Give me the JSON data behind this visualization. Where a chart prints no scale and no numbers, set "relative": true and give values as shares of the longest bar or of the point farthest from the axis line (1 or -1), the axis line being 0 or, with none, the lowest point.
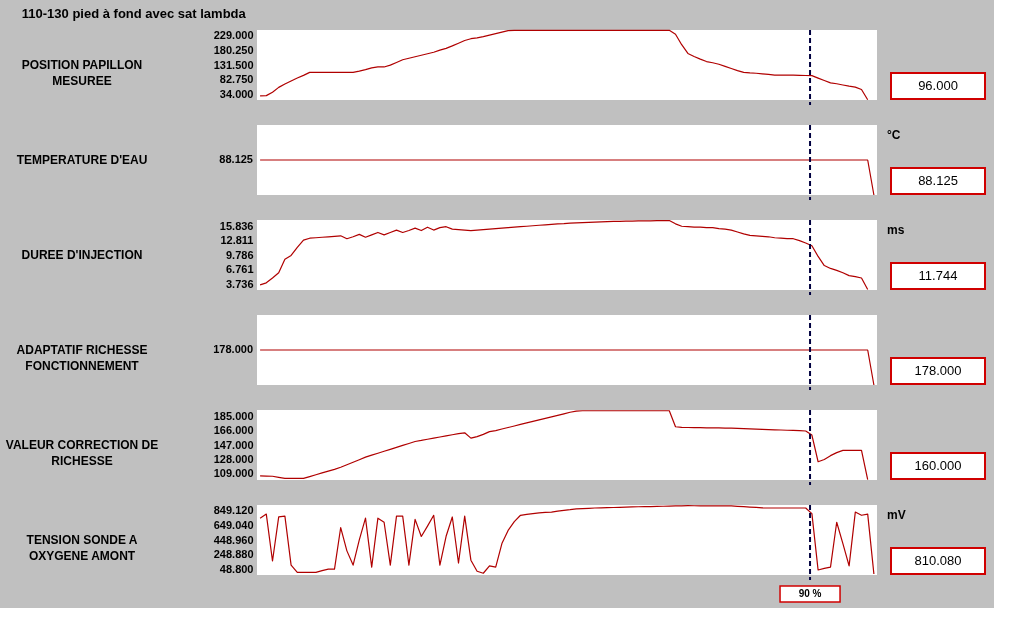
{
  "chart_data": [
    {
      "type": "line",
      "title": "110-130 pied à fond avec sat lambda",
      "ylabel": "POSITION PAPILLON MESUREE",
      "categories": [
        null,
        null,
        null,
        null,
        null,
        null,
        null,
        null,
        null,
        null,
        null,
        null,
        null,
        null,
        null,
        null,
        null,
        null,
        null,
        null,
        null,
        null,
        null,
        null,
        null,
        null,
        null,
        null,
        null,
        null,
        null,
        null,
        null,
        null,
        null,
        null,
        null,
        null,
        null,
        null,
        null,
        null,
        null,
        null,
        null,
        null,
        null,
        null,
        null,
        null,
        null,
        null,
        null,
        null,
        null,
        null,
        null,
        null,
        null,
        null,
        null,
        null,
        null,
        null,
        null,
        null,
        null,
        null,
        null,
        null,
        null,
        null,
        null,
        null,
        null,
        null,
        null,
        null,
        null,
        null,
        null,
        null,
        null,
        null,
        null,
        null,
        null,
        null,
        null,
        null,
        null,
        null,
        null,
        null,
        null,
        null,
        null,
        null,
        null,
        null
      ],
      "tick_labels": "y",
      "grid": false,
      "ylim": [
        15,
        248
      ],
      "yticks": [
        {
          "value": 34,
          "label": "34.000"
        },
        {
          "value": 82.75,
          "label": "82.750"
        },
        {
          "value": 131.5,
          "label": "131.500"
        },
        {
          "value": 180.25,
          "label": "180.250"
        },
        {
          "value": 229,
          "label": "229.000"
        }
      ],
      "series": [
        {
          "color": "#b00000",
          "values": [
            28.5,
            29.5,
            41,
            57,
            68,
            78,
            88,
            97,
            107,
            107,
            107,
            107,
            107,
            107,
            107,
            107,
            111,
            116,
            122,
            125,
            125,
            131,
            140,
            149,
            154,
            159,
            164,
            169,
            174,
            181,
            187,
            195,
            204,
            213,
            219,
            222,
            226,
            231,
            236,
            241,
            246,
            247,
            247,
            247,
            247,
            247,
            247,
            247,
            247,
            247,
            247,
            247,
            247,
            247,
            247,
            247,
            247,
            247,
            247,
            247,
            247,
            247,
            247,
            247,
            247,
            247,
            247,
            234,
            199,
            170,
            160,
            151,
            143,
            139,
            134,
            127,
            120,
            113,
            107,
            105,
            104,
            102,
            100,
            98,
            97.6,
            97.6,
            97.6,
            97,
            96.5,
            96,
            88,
            80,
            72,
            69,
            65,
            61,
            58,
            50,
            16,
            null
          ]
        }
      ],
      "annotations": [
        "96.000"
      ]
    },
    {
      "type": "line",
      "ylabel": "TEMPERATURE D'EAU",
      "y2label": "°C",
      "relative": true,
      "categories": [
        null,
        null,
        null,
        null,
        null,
        null,
        null,
        null,
        null,
        null,
        null,
        null,
        null,
        null,
        null,
        null,
        null,
        null,
        null,
        null,
        null,
        null,
        null,
        null,
        null,
        null,
        null,
        null,
        null,
        null,
        null,
        null,
        null,
        null,
        null,
        null,
        null,
        null,
        null,
        null,
        null,
        null,
        null,
        null,
        null,
        null,
        null,
        null,
        null,
        null,
        null,
        null,
        null,
        null,
        null,
        null,
        null,
        null,
        null,
        null,
        null,
        null,
        null,
        null,
        null,
        null,
        null,
        null,
        null,
        null,
        null,
        null,
        null,
        null,
        null,
        null,
        null,
        null,
        null,
        null,
        null,
        null,
        null,
        null,
        null,
        null,
        null,
        null,
        null,
        null,
        null,
        null,
        null,
        null,
        null,
        null,
        null,
        null,
        null,
        null
      ],
      "tick_labels": false,
      "grid": false,
      "series": [
        {
          "color": "#b00000",
          "values": [
            1,
            1,
            1,
            1,
            1,
            1,
            1,
            1,
            1,
            1,
            1,
            1,
            1,
            1,
            1,
            1,
            1,
            1,
            1,
            1,
            1,
            1,
            1,
            1,
            1,
            1,
            1,
            1,
            1,
            1,
            1,
            1,
            1,
            1,
            1,
            1,
            1,
            1,
            1,
            1,
            1,
            1,
            1,
            1,
            1,
            1,
            1,
            1,
            1,
            1,
            1,
            1,
            1,
            1,
            1,
            1,
            1,
            1,
            1,
            1,
            1,
            1,
            1,
            1,
            1,
            1,
            1,
            1,
            1,
            1,
            1,
            1,
            1,
            1,
            1,
            1,
            1,
            1,
            1,
            1,
            1,
            1,
            1,
            1,
            1,
            1,
            1,
            1,
            1,
            1,
            1,
            1,
            1,
            1,
            1,
            1,
            1,
            1,
            1,
            0
          ]
        }
      ],
      "annotations": [
        "88.125",
        "88.125"
      ]
    },
    {
      "type": "line",
      "ylabel": "DUREE D'INJECTION",
      "y2label": "ms",
      "categories": [
        null,
        null,
        null,
        null,
        null,
        null,
        null,
        null,
        null,
        null,
        null,
        null,
        null,
        null,
        null,
        null,
        null,
        null,
        null,
        null,
        null,
        null,
        null,
        null,
        null,
        null,
        null,
        null,
        null,
        null,
        null,
        null,
        null,
        null,
        null,
        null,
        null,
        null,
        null,
        null,
        null,
        null,
        null,
        null,
        null,
        null,
        null,
        null,
        null,
        null,
        null,
        null,
        null,
        null,
        null,
        null,
        null,
        null,
        null,
        null,
        null,
        null,
        null,
        null,
        null,
        null,
        null,
        null,
        null,
        null,
        null,
        null,
        null,
        null,
        null,
        null,
        null,
        null,
        null,
        null,
        null,
        null,
        null,
        null,
        null,
        null,
        null,
        null,
        null,
        null,
        null,
        null,
        null,
        null,
        null,
        null,
        null,
        null,
        null,
        null
      ],
      "tick_labels": "y",
      "grid": false,
      "ylim": [
        2.5,
        17.1
      ],
      "yticks": [
        {
          "value": 3.736,
          "label": "3.736"
        },
        {
          "value": 6.761,
          "label": "6.761"
        },
        {
          "value": 9.786,
          "label": "9.786"
        },
        {
          "value": 12.811,
          "label": "12.811"
        },
        {
          "value": 15.836,
          "label": "15.836"
        }
      ],
      "series": [
        {
          "color": "#b00000",
          "values": [
            3.56,
            4.0,
            5.0,
            6.1,
            8.9,
            9.7,
            11.4,
            12.9,
            13.3,
            13.4,
            13.5,
            13.6,
            13.7,
            13.8,
            13.2,
            13.6,
            14.1,
            13.5,
            14.0,
            14.5,
            14.0,
            14.5,
            15.0,
            14.5,
            14.9,
            15.4,
            14.9,
            15.6,
            15.0,
            15.5,
            15.7,
            15.2,
            15.1,
            15.0,
            14.9,
            15.0,
            15.1,
            15.2,
            15.3,
            15.4,
            15.5,
            15.6,
            15.7,
            15.8,
            15.9,
            16.0,
            16.1,
            16.2,
            16.3,
            16.35,
            16.45,
            16.5,
            16.55,
            16.6,
            16.65,
            16.7,
            16.75,
            16.8,
            16.8,
            16.85,
            16.85,
            16.9,
            16.9,
            16.9,
            16.95,
            16.95,
            17.0,
            16.3,
            15.8,
            15.7,
            15.6,
            15.6,
            15.5,
            15.5,
            15.3,
            15.2,
            15.0,
            14.6,
            14.2,
            13.9,
            13.8,
            13.7,
            13.6,
            13.4,
            13.3,
            13.2,
            13.2,
            12.8,
            12.3,
            11.744,
            9.5,
            7.6,
            7.0,
            6.6,
            6.1,
            5.5,
            5.3,
            5.0,
            2.6,
            null
          ]
        }
      ],
      "annotations": [
        "11.744"
      ]
    },
    {
      "type": "line",
      "ylabel": "ADAPTATIF RICHESSE FONCTIONNEMENT",
      "relative": true,
      "categories": [
        null,
        null,
        null,
        null,
        null,
        null,
        null,
        null,
        null,
        null,
        null,
        null,
        null,
        null,
        null,
        null,
        null,
        null,
        null,
        null,
        null,
        null,
        null,
        null,
        null,
        null,
        null,
        null,
        null,
        null,
        null,
        null,
        null,
        null,
        null,
        null,
        null,
        null,
        null,
        null,
        null,
        null,
        null,
        null,
        null,
        null,
        null,
        null,
        null,
        null,
        null,
        null,
        null,
        null,
        null,
        null,
        null,
        null,
        null,
        null,
        null,
        null,
        null,
        null,
        null,
        null,
        null,
        null,
        null,
        null,
        null,
        null,
        null,
        null,
        null,
        null,
        null,
        null,
        null,
        null,
        null,
        null,
        null,
        null,
        null,
        null,
        null,
        null,
        null,
        null,
        null,
        null,
        null,
        null,
        null,
        null,
        null,
        null,
        null,
        null
      ],
      "tick_labels": false,
      "grid": false,
      "series": [
        {
          "color": "#b00000",
          "values": [
            1,
            1,
            1,
            1,
            1,
            1,
            1,
            1,
            1,
            1,
            1,
            1,
            1,
            1,
            1,
            1,
            1,
            1,
            1,
            1,
            1,
            1,
            1,
            1,
            1,
            1,
            1,
            1,
            1,
            1,
            1,
            1,
            1,
            1,
            1,
            1,
            1,
            1,
            1,
            1,
            1,
            1,
            1,
            1,
            1,
            1,
            1,
            1,
            1,
            1,
            1,
            1,
            1,
            1,
            1,
            1,
            1,
            1,
            1,
            1,
            1,
            1,
            1,
            1,
            1,
            1,
            1,
            1,
            1,
            1,
            1,
            1,
            1,
            1,
            1,
            1,
            1,
            1,
            1,
            1,
            1,
            1,
            1,
            1,
            1,
            1,
            1,
            1,
            1,
            1,
            1,
            1,
            1,
            1,
            1,
            1,
            1,
            1,
            1,
            0
          ]
        }
      ],
      "annotations": [
        "178.000",
        "178.000"
      ]
    },
    {
      "type": "line",
      "ylabel": "VALEUR CORRECTION DE RICHESSE",
      "categories": [
        null,
        null,
        null,
        null,
        null,
        null,
        null,
        null,
        null,
        null,
        null,
        null,
        null,
        null,
        null,
        null,
        null,
        null,
        null,
        null,
        null,
        null,
        null,
        null,
        null,
        null,
        null,
        null,
        null,
        null,
        null,
        null,
        null,
        null,
        null,
        null,
        null,
        null,
        null,
        null,
        null,
        null,
        null,
        null,
        null,
        null,
        null,
        null,
        null,
        null,
        null,
        null,
        null,
        null,
        null,
        null,
        null,
        null,
        null,
        null,
        null,
        null,
        null,
        null,
        null,
        null,
        null,
        null,
        null,
        null,
        null,
        null,
        null,
        null,
        null,
        null,
        null,
        null,
        null,
        null,
        null,
        null,
        null,
        null,
        null,
        null,
        null,
        null,
        null,
        null,
        null,
        null,
        null,
        null,
        null,
        null,
        null,
        null,
        null,
        null
      ],
      "tick_labels": "y",
      "grid": false,
      "ylim": [
        101,
        193
      ],
      "yticks": [
        {
          "value": 109,
          "label": "109.000"
        },
        {
          "value": 128,
          "label": "128.000"
        },
        {
          "value": 147,
          "label": "147.000"
        },
        {
          "value": 166,
          "label": "166.000"
        },
        {
          "value": 185,
          "label": "185.000"
        }
      ],
      "series": [
        {
          "color": "#b00000",
          "values": [
            106.3,
            106.1,
            105.9,
            104.5,
            103.1,
            103.1,
            103.1,
            103.1,
            105.5,
            107.9,
            110.3,
            112.7,
            115,
            117.7,
            121,
            124.3,
            127.6,
            131,
            133.6,
            136.2,
            138.8,
            141.3,
            143.9,
            146.5,
            149,
            151.6,
            153,
            154.6,
            156,
            157.5,
            159,
            160.5,
            162,
            163,
            156,
            158,
            161,
            164.6,
            166,
            168,
            170,
            172,
            174,
            176,
            178,
            180,
            182,
            184,
            186,
            188,
            190,
            191.5,
            192,
            192,
            192,
            192,
            192,
            192,
            192,
            192,
            192,
            192,
            192,
            192,
            192,
            192,
            192,
            171,
            170.1,
            170,
            169.9,
            169.8,
            169.6,
            169.5,
            169.4,
            169.2,
            169.1,
            168.8,
            168.5,
            168.2,
            167.9,
            167.6,
            167.3,
            167,
            166.7,
            166.4,
            166.1,
            165.8,
            165.4,
            160,
            125,
            128,
            133,
            137,
            139.9,
            139.9,
            139.9,
            139.9,
            101.5,
            null
          ]
        }
      ],
      "annotations": [
        "160.000"
      ]
    },
    {
      "type": "line",
      "ylabel": "TENSION SONDE A OXYGENE AMONT",
      "y2label": "mV",
      "categories": [
        null,
        null,
        null,
        null,
        null,
        null,
        null,
        null,
        null,
        null,
        null,
        null,
        null,
        null,
        null,
        null,
        null,
        null,
        null,
        null,
        null,
        null,
        null,
        null,
        null,
        null,
        null,
        null,
        null,
        null,
        null,
        null,
        null,
        null,
        null,
        null,
        null,
        null,
        null,
        null,
        null,
        null,
        null,
        null,
        null,
        null,
        null,
        null,
        null,
        null,
        null,
        null,
        null,
        null,
        null,
        null,
        null,
        null,
        null,
        null,
        null,
        null,
        null,
        null,
        null,
        null,
        null,
        null,
        null,
        null,
        null,
        null,
        null,
        null,
        null,
        null,
        null,
        null,
        null,
        null,
        null,
        null,
        null,
        null,
        null,
        null,
        null,
        null,
        null,
        null,
        null,
        null,
        null,
        null,
        null,
        null,
        null,
        null,
        null,
        null
      ],
      "tick_labels": "y",
      "grid": false,
      "ylim": [
        -31,
        929
      ],
      "yticks": [
        {
          "value": 48.8,
          "label": "48.800"
        },
        {
          "value": 248.88,
          "label": "248.880"
        },
        {
          "value": 448.96,
          "label": "448.960"
        },
        {
          "value": 649.04,
          "label": "649.040"
        },
        {
          "value": 849.12,
          "label": "849.120"
        }
      ],
      "series": [
        {
          "color": "#b00000",
          "values": [
            748,
            804,
            161,
            765,
            776,
            105,
            4,
            4,
            4,
            4,
            30,
            49,
            49,
            620,
            300,
            105,
            450,
            748,
            77,
            748,
            692,
            105,
            776,
            776,
            105,
            732,
            497,
            640,
            788,
            105,
            500,
            765,
            133,
            776,
            172,
            21,
            -7,
            94,
            77,
            400,
            580,
            700,
            788,
            800,
            810,
            820,
            828,
            832,
            845,
            855,
            865,
            877,
            880,
            884,
            888,
            890,
            892,
            895,
            897,
            900,
            902,
            905,
            906,
            908,
            910,
            912,
            914,
            916,
            918,
            920,
            919,
            918,
            918,
            917,
            917,
            916,
            916,
            911,
            906,
            901,
            896,
            890,
            888,
            888,
            888,
            888,
            888,
            888,
            888,
            810.08,
            38,
            60,
            77,
            692,
            400,
            94,
            832,
            788,
            804,
            -18
          ]
        }
      ],
      "xlabel": "90 %",
      "annotations": [
        "810.080"
      ]
    }
  ]
}
